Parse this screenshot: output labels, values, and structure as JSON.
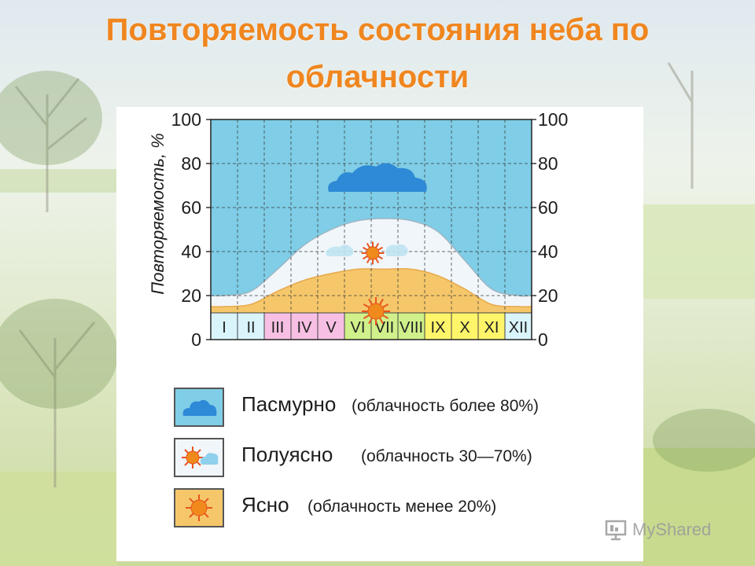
{
  "slide": {
    "title": "Повторяемость состояния неба по облачности"
  },
  "chart_data": {
    "type": "area",
    "ylabel": "Повторяемость, %",
    "ylim": [
      0,
      100
    ],
    "y_ticks": [
      "100",
      "80",
      "60",
      "40",
      "20",
      "0"
    ],
    "categories": [
      "I",
      "II",
      "III",
      "IV",
      "V",
      "VI",
      "VII",
      "VIII",
      "IX",
      "X",
      "XI",
      "XII"
    ],
    "category_colors": [
      "#d9f4fb",
      "#d9f4fb",
      "#f7bfe3",
      "#f7bfe3",
      "#f7bfe3",
      "#cff08a",
      "#cff08a",
      "#cff08a",
      "#fff56a",
      "#fff56a",
      "#fff56a",
      "#d9f4fb"
    ],
    "series": [
      {
        "name": "Ясно",
        "values": [
          15,
          16,
          22,
          27,
          30,
          32,
          32,
          32,
          29,
          23,
          16,
          15
        ],
        "color": "#f5c76a"
      },
      {
        "name": "Полуясно",
        "values": [
          5,
          6,
          10,
          16,
          20,
          22,
          23,
          22,
          20,
          13,
          7,
          5
        ],
        "color": "#f1f6fa"
      },
      {
        "name": "Пасмурно",
        "values": [
          80,
          78,
          68,
          57,
          50,
          46,
          45,
          46,
          51,
          64,
          77,
          80
        ],
        "color": "#7fcde6"
      }
    ],
    "grid": true,
    "colors": {
      "clear": "#f5c76a",
      "partly": "#f1f6fa",
      "overcast": "#7fcde6",
      "cloud": "#2e89d6",
      "sun": "#e8541f"
    }
  },
  "legend": [
    {
      "icon": "cloud-icon",
      "label": "Пасмурно",
      "note": "(облачность более 80%)"
    },
    {
      "icon": "sun-cloud-icon",
      "label": "Полуясно",
      "note": "(облачность 30—70%)"
    },
    {
      "icon": "sun-icon",
      "label": "Ясно",
      "note": "(облачность менее 20%)"
    }
  ],
  "watermark": {
    "text": "MyShared",
    "icon": "presentation-icon"
  }
}
